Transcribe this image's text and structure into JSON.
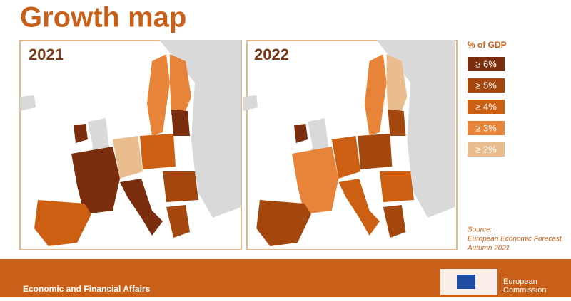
{
  "header": {
    "title": "Growth map"
  },
  "maps": [
    {
      "year": "2021"
    },
    {
      "year": "2022"
    }
  ],
  "legend": {
    "title": "% of GDP",
    "items": [
      {
        "label": "≥ 6%",
        "color": "#7a2e0e"
      },
      {
        "label": "≥ 5%",
        "color": "#a3470f"
      },
      {
        "label": "≥ 4%",
        "color": "#cc5f12"
      },
      {
        "label": "≥ 3%",
        "color": "#e8843a"
      },
      {
        "label": "≥ 2%",
        "color": "#e9bd8e"
      }
    ]
  },
  "source": [
    "Source:",
    "European Economic Forecast,",
    "Autumn 2021"
  ],
  "footer": {
    "department": "Economic and Financial Affairs",
    "brand": [
      "European",
      "Commission"
    ]
  }
}
